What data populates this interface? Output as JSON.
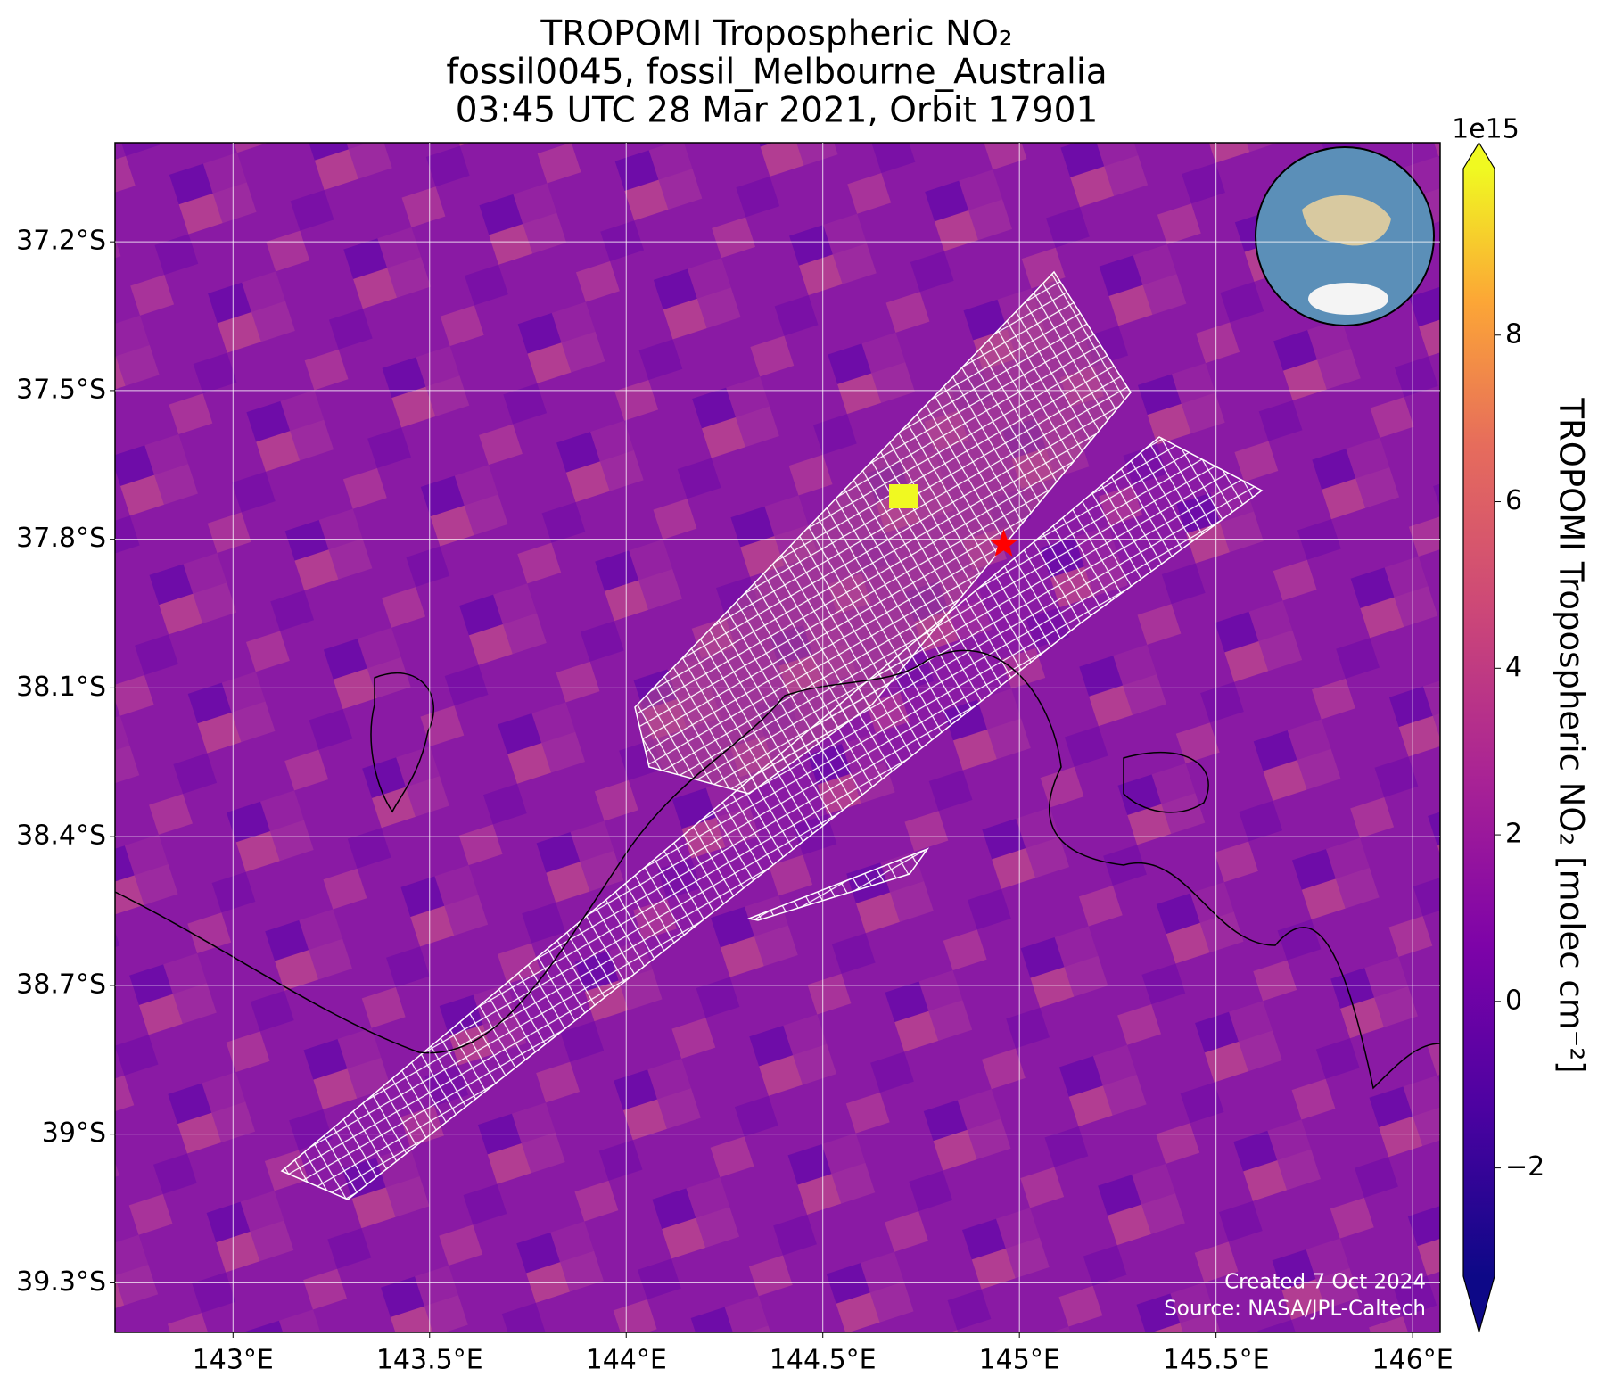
{
  "chart_data": {
    "type": "map",
    "title": [
      "TROPOMI Tropospheric NO₂",
      "fossil0045, fossil_Melbourne_Australia",
      "03:45 UTC 28 Mar 2021, Orbit 17901"
    ],
    "xlim": [
      142.7,
      146.07
    ],
    "ylim": [
      -37.0,
      -39.4
    ],
    "xticks": [
      {
        "value": 143,
        "label": "143°E"
      },
      {
        "value": 143.5,
        "label": "143.5°E"
      },
      {
        "value": 144,
        "label": "144°E"
      },
      {
        "value": 144.5,
        "label": "144.5°E"
      },
      {
        "value": 145,
        "label": "145°E"
      },
      {
        "value": 145.5,
        "label": "145.5°E"
      },
      {
        "value": 146,
        "label": "146°E"
      }
    ],
    "yticks": [
      {
        "value": -37.2,
        "label": "37.2°S"
      },
      {
        "value": -37.5,
        "label": "37.5°S"
      },
      {
        "value": -37.8,
        "label": "37.8°S"
      },
      {
        "value": -38.1,
        "label": "38.1°S"
      },
      {
        "value": -38.4,
        "label": "38.4°S"
      },
      {
        "value": -38.7,
        "label": "38.7°S"
      },
      {
        "value": -39.0,
        "label": "39°S"
      },
      {
        "value": -39.3,
        "label": "39.3°S"
      }
    ],
    "grid": true,
    "marker": {
      "lon": 144.96,
      "lat": -37.81,
      "color": "#ff0000"
    },
    "colorbar": {
      "label": "TROPOMI Tropospheric NO₂ [molec cm⁻²]",
      "scale_label": "1e15",
      "lim": [
        -3.3,
        10
      ],
      "ticks": [
        {
          "value": -2,
          "label": "−2"
        },
        0,
        2,
        4,
        6,
        8
      ]
    },
    "annotations": [
      "Created 7 Oct 2024",
      "Source: NASA/JPL-Caltech"
    ]
  }
}
